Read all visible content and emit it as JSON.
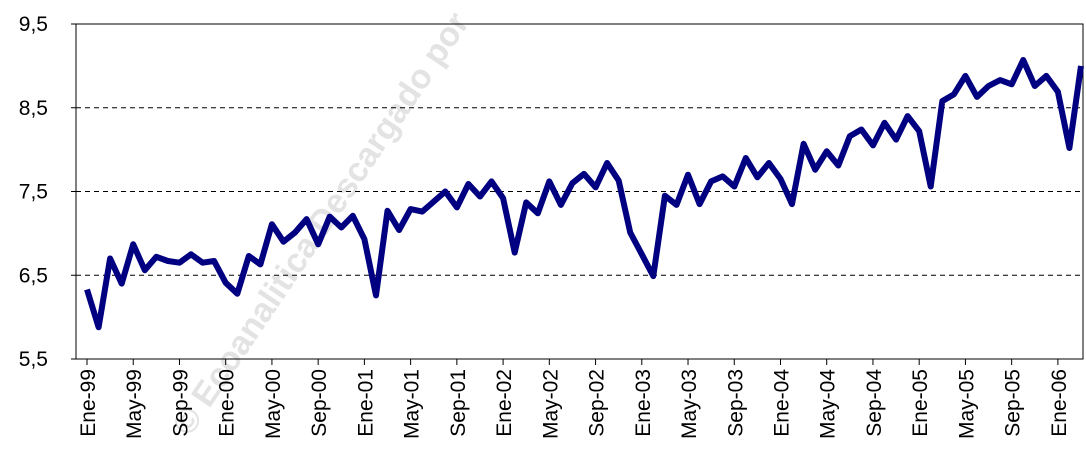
{
  "chart_data": {
    "type": "line",
    "watermark": "© Ecoanalitica Descargado por",
    "categories": [
      "Ene-99",
      null,
      null,
      null,
      "May-99",
      null,
      null,
      null,
      "Sep-99",
      null,
      null,
      null,
      "Ene-00",
      null,
      null,
      null,
      "May-00",
      null,
      null,
      null,
      "Sep-00",
      null,
      null,
      null,
      "Ene-01",
      null,
      null,
      null,
      "May-01",
      null,
      null,
      null,
      "Sep-01",
      null,
      null,
      null,
      "Ene-02",
      null,
      null,
      null,
      "May-02",
      null,
      null,
      null,
      "Sep-02",
      null,
      null,
      null,
      "Ene-03",
      null,
      null,
      null,
      "May-03",
      null,
      null,
      null,
      "Sep-03",
      null,
      null,
      null,
      "Ene-04",
      null,
      null,
      null,
      "May-04",
      null,
      null,
      null,
      "Sep-04",
      null,
      null,
      null,
      "Ene-05",
      null,
      null,
      null,
      "May-05",
      null,
      null,
      null,
      "Sep-05",
      null,
      null,
      null,
      "Ene-06",
      null,
      null
    ],
    "series": [
      {
        "color": "#000080",
        "values": [
          6.33,
          5.88,
          6.7,
          6.4,
          6.87,
          6.56,
          6.72,
          6.67,
          6.65,
          6.75,
          6.65,
          6.67,
          6.41,
          6.28,
          6.73,
          6.63,
          7.11,
          6.9,
          7.01,
          7.17,
          6.87,
          7.2,
          7.07,
          7.21,
          6.93,
          6.26,
          7.27,
          7.04,
          7.29,
          7.26,
          7.38,
          7.5,
          7.31,
          7.59,
          7.44,
          7.62,
          7.42,
          6.77,
          7.37,
          7.24,
          7.62,
          7.34,
          7.6,
          7.71,
          7.55,
          7.84,
          7.63,
          7.01,
          6.75,
          6.49,
          7.45,
          7.34,
          7.7,
          7.35,
          7.62,
          7.68,
          7.56,
          7.9,
          7.67,
          7.84,
          7.65,
          7.35,
          8.07,
          7.76,
          7.98,
          7.81,
          8.16,
          8.24,
          8.05,
          8.32,
          8.12,
          8.4,
          8.22,
          7.56,
          8.58,
          8.66,
          8.88,
          8.63,
          8.76,
          8.83,
          8.78,
          9.07,
          8.76,
          8.88,
          8.69,
          8.02,
          9.0
        ]
      }
    ],
    "ylim": [
      5.5,
      9.5
    ],
    "yticks": [
      {
        "value": 5.5,
        "label": "5,5"
      },
      {
        "value": 6.5,
        "label": "6,5"
      },
      {
        "value": 7.5,
        "label": "7,5"
      },
      {
        "value": 8.5,
        "label": "8,5"
      },
      {
        "value": 9.5,
        "label": "9,5"
      }
    ],
    "grid": true
  }
}
